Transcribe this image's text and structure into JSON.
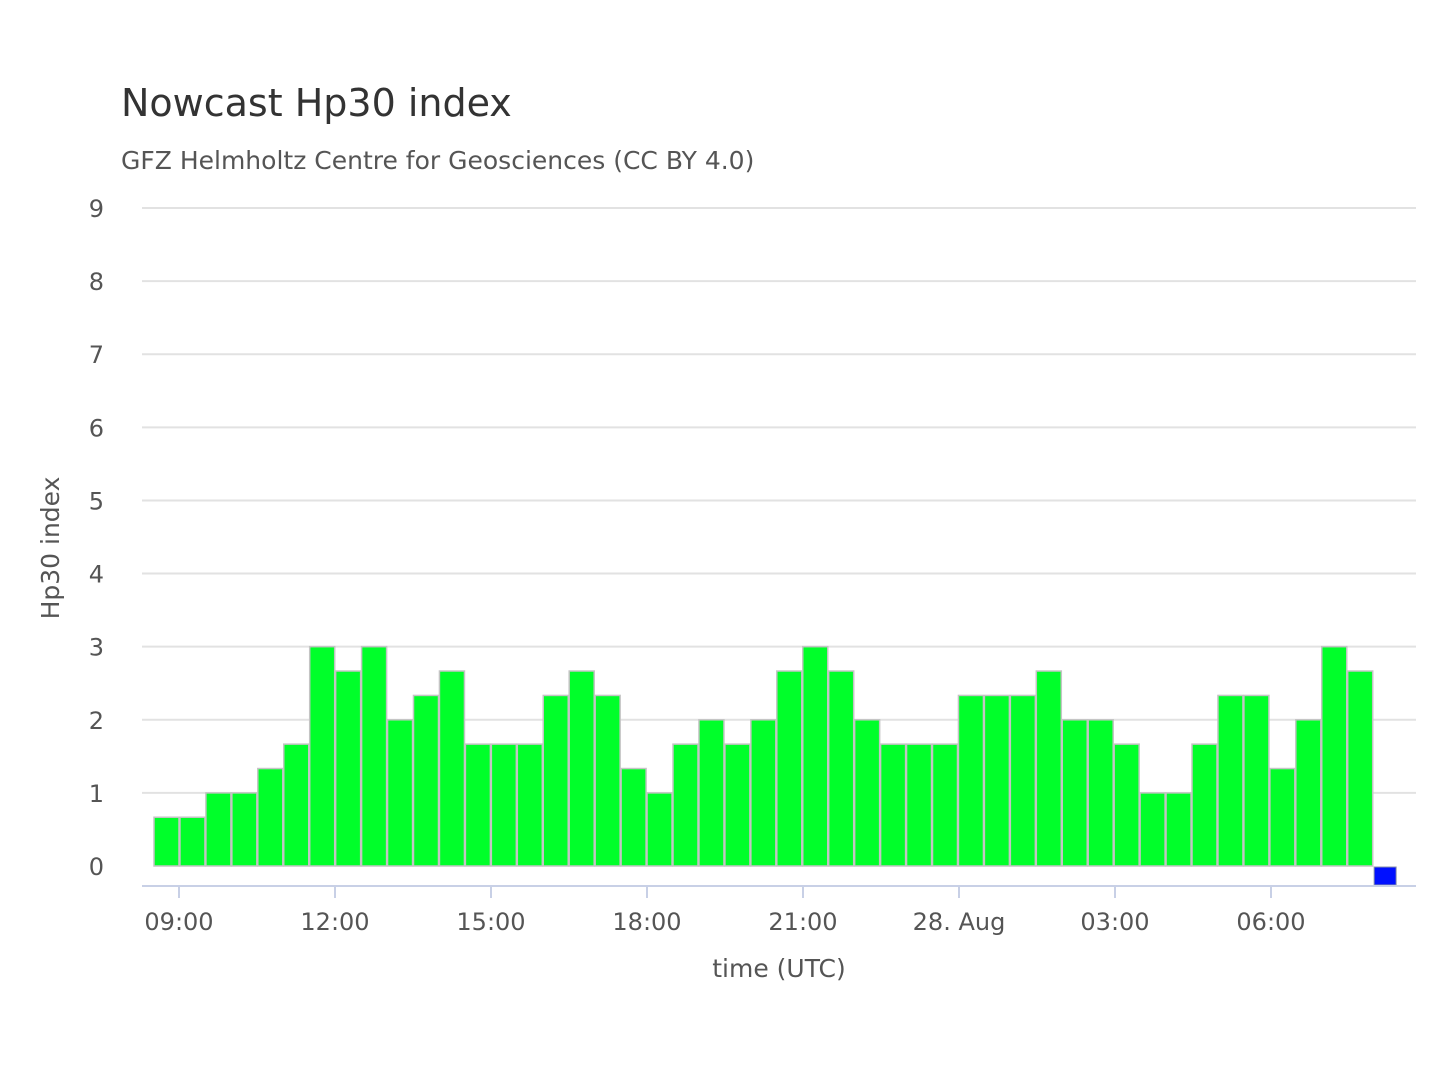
{
  "chart_data": {
    "type": "bar",
    "title": "Nowcast Hp30 index",
    "subtitle": "GFZ Helmholtz Centre for Geosciences (CC BY 4.0)",
    "xlabel": "time (UTC)",
    "ylabel": "Hp30 index",
    "ylim": [
      0,
      9
    ],
    "y_ticks": [
      "0",
      "1",
      "2",
      "3",
      "4",
      "5",
      "6",
      "7",
      "8",
      "9"
    ],
    "x_tick_labels": [
      "09:00",
      "12:00",
      "15:00",
      "18:00",
      "21:00",
      "28. Aug",
      "03:00",
      "06:00"
    ],
    "grid": true,
    "interval": "30 min",
    "first_bar_time": "27 Aug 08:30 UTC",
    "values": [
      0.667,
      0.667,
      1.0,
      1.0,
      1.333,
      1.667,
      3.0,
      2.667,
      3.0,
      2.0,
      2.333,
      2.667,
      1.667,
      1.667,
      1.667,
      2.333,
      2.667,
      2.333,
      1.333,
      1.0,
      1.667,
      2.0,
      1.667,
      2.0,
      2.667,
      3.0,
      2.667,
      2.0,
      1.667,
      1.667,
      1.667,
      2.333,
      2.333,
      2.333,
      2.667,
      2.0,
      2.0,
      1.667,
      1.0,
      1.0,
      1.667,
      2.333,
      2.333,
      1.333,
      2.0,
      3.0,
      2.667,
      0.0
    ],
    "colors": {
      "bar": "#00ff2a",
      "bar_border": "#c4c4c4",
      "latest_marker": "#0010ff"
    },
    "latest_marker_index": 47
  }
}
